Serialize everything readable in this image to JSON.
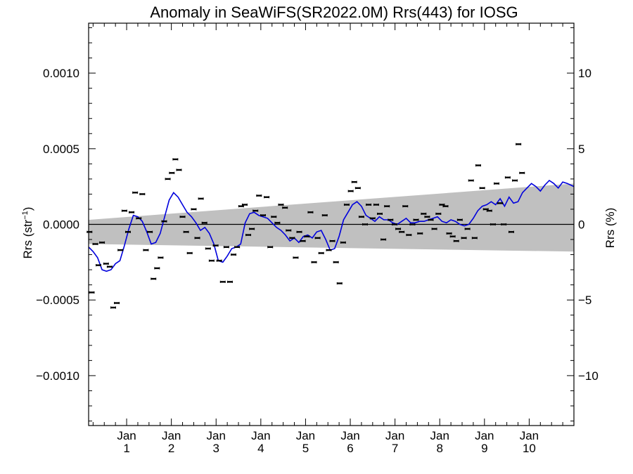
{
  "chart_data": {
    "type": "scatter",
    "title": "Anomaly in SeaWiFS(SR2022.0M) Rrs(443) for IOSG",
    "ylabel_left_main": "Rrs (str",
    "ylabel_left_sup": "−1",
    "ylabel_left_close": ")",
    "ylabel_right": "Rrs (%)",
    "xlim": [
      0,
      10.85
    ],
    "ylim": [
      -0.00133,
      0.00133
    ],
    "ylim_right": [
      -13.3,
      13.3
    ],
    "y_ticks": [
      {
        "value": 0.001,
        "label": "0.0010"
      },
      {
        "value": 0.0005,
        "label": "0.0005"
      },
      {
        "value": 0.0,
        "label": "0.0000"
      },
      {
        "value": -0.0005,
        "label": "−0.0005"
      },
      {
        "value": -0.001,
        "label": "−0.0010"
      }
    ],
    "y_ticks_right": [
      {
        "value": 10,
        "label": "10"
      },
      {
        "value": 5,
        "label": "5"
      },
      {
        "value": 0,
        "label": "0"
      },
      {
        "value": -5,
        "label": "−5"
      },
      {
        "value": -10,
        "label": "−10"
      }
    ],
    "x_ticks": [
      {
        "value": 0.85,
        "top": "Jan",
        "bottom": "1"
      },
      {
        "value": 1.85,
        "top": "Jan",
        "bottom": "2"
      },
      {
        "value": 2.85,
        "top": "Jan",
        "bottom": "3"
      },
      {
        "value": 3.85,
        "top": "Jan",
        "bottom": "4"
      },
      {
        "value": 4.85,
        "top": "Jan",
        "bottom": "5"
      },
      {
        "value": 5.85,
        "top": "Jan",
        "bottom": "6"
      },
      {
        "value": 6.85,
        "top": "Jan",
        "bottom": "7"
      },
      {
        "value": 7.85,
        "top": "Jan",
        "bottom": "8"
      },
      {
        "value": 8.85,
        "top": "Jan",
        "bottom": "9"
      },
      {
        "value": 9.85,
        "top": "Jan",
        "bottom": "10"
      }
    ],
    "zero_line": true,
    "band": {
      "x": [
        0,
        10.85
      ],
      "upper": [
        3e-05,
        0.00027
      ],
      "lower": [
        -0.00013,
        -0.00018
      ],
      "color": "#c0c0c0"
    },
    "line_color": "#0000dd",
    "point_color": "#000000",
    "points": [
      [
        0.02,
        -5e-05
      ],
      [
        0.07,
        -0.00045
      ],
      [
        0.15,
        -0.00013
      ],
      [
        0.22,
        -0.00027
      ],
      [
        0.3,
        -0.00012
      ],
      [
        0.39,
        -0.00026
      ],
      [
        0.47,
        -0.00028
      ],
      [
        0.55,
        -0.00055
      ],
      [
        0.63,
        -0.00052
      ],
      [
        0.71,
        -0.00017
      ],
      [
        0.8,
        9e-05
      ],
      [
        0.88,
        -5e-05
      ],
      [
        0.96,
        8e-05
      ],
      [
        1.04,
        0.00021
      ],
      [
        1.12,
        4e-05
      ],
      [
        1.2,
        0.0002
      ],
      [
        1.28,
        -0.00017
      ],
      [
        1.37,
        -5e-05
      ],
      [
        1.45,
        -0.00036
      ],
      [
        1.53,
        -0.00029
      ],
      [
        1.61,
        -0.00022
      ],
      [
        1.69,
        2e-05
      ],
      [
        1.77,
        0.0003
      ],
      [
        1.86,
        0.00034
      ],
      [
        1.94,
        0.00043
      ],
      [
        2.02,
        0.00036
      ],
      [
        2.1,
        5e-05
      ],
      [
        2.18,
        -5e-05
      ],
      [
        2.26,
        -0.00019
      ],
      [
        2.35,
        0.0001
      ],
      [
        2.43,
        -9e-05
      ],
      [
        2.51,
        0.00017
      ],
      [
        2.59,
        1e-05
      ],
      [
        2.67,
        -0.00016
      ],
      [
        2.75,
        -0.00024
      ],
      [
        2.84,
        -0.00014
      ],
      [
        2.92,
        -0.00024
      ],
      [
        3.0,
        -0.00038
      ],
      [
        3.08,
        -0.00015
      ],
      [
        3.16,
        -0.00038
      ],
      [
        3.24,
        -0.0002
      ],
      [
        3.32,
        -0.00015
      ],
      [
        3.41,
        0.00012
      ],
      [
        3.49,
        0.00013
      ],
      [
        3.57,
        -7e-05
      ],
      [
        3.65,
        -3e-05
      ],
      [
        3.73,
        9e-05
      ],
      [
        3.81,
        0.00019
      ],
      [
        3.9,
        6e-05
      ],
      [
        3.98,
        0.00018
      ],
      [
        4.06,
        -0.00015
      ],
      [
        4.14,
        5e-05
      ],
      [
        4.22,
        1e-05
      ],
      [
        4.3,
        0.00013
      ],
      [
        4.39,
        0.00011
      ],
      [
        4.47,
        -4e-05
      ],
      [
        4.55,
        -9e-05
      ],
      [
        4.63,
        -0.00022
      ],
      [
        4.71,
        -5e-05
      ],
      [
        4.79,
        -0.00011
      ],
      [
        4.88,
        -8e-05
      ],
      [
        4.96,
        8e-05
      ],
      [
        5.04,
        -0.00025
      ],
      [
        5.12,
        -9e-05
      ],
      [
        5.2,
        -0.00019
      ],
      [
        5.28,
        6e-05
      ],
      [
        5.37,
        -0.00017
      ],
      [
        5.45,
        -0.00011
      ],
      [
        5.53,
        -0.00025
      ],
      [
        5.61,
        -0.00039
      ],
      [
        5.69,
        -0.00012
      ],
      [
        5.77,
        0.00013
      ],
      [
        5.86,
        0.00022
      ],
      [
        5.94,
        0.00028
      ],
      [
        6.02,
        0.00024
      ],
      [
        6.1,
        5e-05
      ],
      [
        6.18,
        0.0
      ],
      [
        6.26,
        0.00013
      ],
      [
        6.35,
        4e-05
      ],
      [
        6.43,
        0.00013
      ],
      [
        6.51,
        7e-05
      ],
      [
        6.59,
        -0.0001
      ],
      [
        6.67,
        0.00012
      ],
      [
        6.75,
        3e-05
      ],
      [
        6.84,
        0.0
      ],
      [
        6.92,
        -3e-05
      ],
      [
        7.0,
        -5e-05
      ],
      [
        7.08,
        0.00012
      ],
      [
        7.16,
        -7e-05
      ],
      [
        7.24,
        0.0
      ],
      [
        7.32,
        3e-05
      ],
      [
        7.41,
        -6e-05
      ],
      [
        7.49,
        7e-05
      ],
      [
        7.57,
        5e-05
      ],
      [
        7.65,
        3e-05
      ],
      [
        7.73,
        -3e-05
      ],
      [
        7.82,
        7e-05
      ],
      [
        7.9,
        0.00013
      ],
      [
        7.98,
        0.00012
      ],
      [
        8.06,
        -6e-05
      ],
      [
        8.14,
        -8e-05
      ],
      [
        8.22,
        -0.00011
      ],
      [
        8.3,
        3e-05
      ],
      [
        8.39,
        -9e-05
      ],
      [
        8.47,
        -3e-05
      ],
      [
        8.55,
        0.00029
      ],
      [
        8.63,
        -9e-05
      ],
      [
        8.71,
        0.00039
      ],
      [
        8.8,
        0.00024
      ],
      [
        8.88,
        0.0001
      ],
      [
        8.96,
        9e-05
      ],
      [
        9.04,
        0.0
      ],
      [
        9.12,
        0.00027
      ],
      [
        9.2,
        0.00014
      ],
      [
        9.28,
        0.0
      ],
      [
        9.37,
        0.00031
      ],
      [
        9.45,
        -5e-05
      ],
      [
        9.53,
        0.00029
      ],
      [
        9.61,
        0.00053
      ],
      [
        9.69,
        0.00034
      ]
    ],
    "line_points": [
      [
        0.0,
        -0.00015
      ],
      [
        0.1,
        -0.00018
      ],
      [
        0.2,
        -0.00022
      ],
      [
        0.3,
        -0.0003
      ],
      [
        0.4,
        -0.00031
      ],
      [
        0.5,
        -0.0003
      ],
      [
        0.6,
        -0.00026
      ],
      [
        0.7,
        -0.00024
      ],
      [
        0.8,
        -0.00014
      ],
      [
        0.9,
        -3e-05
      ],
      [
        1.0,
        6e-05
      ],
      [
        1.1,
        5e-05
      ],
      [
        1.2,
        2e-05
      ],
      [
        1.3,
        -5e-05
      ],
      [
        1.4,
        -0.00013
      ],
      [
        1.5,
        -0.00012
      ],
      [
        1.6,
        -6e-05
      ],
      [
        1.7,
        5e-05
      ],
      [
        1.8,
        0.00016
      ],
      [
        1.9,
        0.00021
      ],
      [
        2.0,
        0.00018
      ],
      [
        2.1,
        0.00013
      ],
      [
        2.2,
        8e-05
      ],
      [
        2.3,
        5e-05
      ],
      [
        2.4,
        1e-05
      ],
      [
        2.5,
        -4e-05
      ],
      [
        2.6,
        -2e-05
      ],
      [
        2.7,
        -6e-05
      ],
      [
        2.8,
        -0.00013
      ],
      [
        2.9,
        -0.00024
      ],
      [
        3.0,
        -0.00025
      ],
      [
        3.1,
        -0.00021
      ],
      [
        3.2,
        -0.00016
      ],
      [
        3.3,
        -0.00015
      ],
      [
        3.4,
        -0.00013
      ],
      [
        3.5,
        1e-05
      ],
      [
        3.6,
        7e-05
      ],
      [
        3.7,
        8e-05
      ],
      [
        3.8,
        6e-05
      ],
      [
        3.9,
        5e-05
      ],
      [
        4.0,
        4e-05
      ],
      [
        4.1,
        1e-05
      ],
      [
        4.2,
        -2e-05
      ],
      [
        4.3,
        -4e-05
      ],
      [
        4.4,
        -7e-05
      ],
      [
        4.5,
        -0.00011
      ],
      [
        4.6,
        -9e-05
      ],
      [
        4.7,
        -0.00012
      ],
      [
        4.8,
        -8e-05
      ],
      [
        4.9,
        -7e-05
      ],
      [
        5.0,
        -9e-05
      ],
      [
        5.1,
        -5e-05
      ],
      [
        5.2,
        -4e-05
      ],
      [
        5.3,
        -0.0001
      ],
      [
        5.4,
        -0.00017
      ],
      [
        5.5,
        -0.00016
      ],
      [
        5.6,
        -8e-05
      ],
      [
        5.7,
        3e-05
      ],
      [
        5.8,
        8e-05
      ],
      [
        5.9,
        0.00013
      ],
      [
        6.0,
        0.00015
      ],
      [
        6.1,
        0.00012
      ],
      [
        6.2,
        6e-05
      ],
      [
        6.3,
        4e-05
      ],
      [
        6.4,
        2e-05
      ],
      [
        6.5,
        5e-05
      ],
      [
        6.6,
        3e-05
      ],
      [
        6.7,
        3e-05
      ],
      [
        6.8,
        1e-05
      ],
      [
        6.9,
        0.0
      ],
      [
        7.0,
        2e-05
      ],
      [
        7.1,
        4e-05
      ],
      [
        7.2,
        1e-05
      ],
      [
        7.3,
        1e-05
      ],
      [
        7.4,
        2e-05
      ],
      [
        7.5,
        2e-05
      ],
      [
        7.6,
        3e-05
      ],
      [
        7.7,
        4e-05
      ],
      [
        7.8,
        5e-05
      ],
      [
        7.9,
        2e-05
      ],
      [
        8.0,
        1e-05
      ],
      [
        8.1,
        3e-05
      ],
      [
        8.2,
        2e-05
      ],
      [
        8.3,
        0.0
      ],
      [
        8.4,
        -1e-05
      ],
      [
        8.5,
        0.0
      ],
      [
        8.6,
        4e-05
      ],
      [
        8.7,
        9e-05
      ],
      [
        8.8,
        0.00012
      ],
      [
        8.9,
        0.00013
      ],
      [
        9.0,
        0.00015
      ],
      [
        9.1,
        0.00013
      ],
      [
        9.2,
        0.00017
      ],
      [
        9.3,
        0.00012
      ],
      [
        9.4,
        0.00018
      ],
      [
        9.5,
        0.00014
      ],
      [
        9.6,
        0.00015
      ],
      [
        9.7,
        0.00021
      ],
      [
        9.8,
        0.00024
      ],
      [
        9.9,
        0.00027
      ],
      [
        10.0,
        0.00025
      ],
      [
        10.1,
        0.00022
      ],
      [
        10.2,
        0.00026
      ],
      [
        10.3,
        0.00029
      ],
      [
        10.4,
        0.00027
      ],
      [
        10.5,
        0.00024
      ],
      [
        10.6,
        0.00028
      ],
      [
        10.7,
        0.00027
      ],
      [
        10.85,
        0.00025
      ]
    ]
  }
}
